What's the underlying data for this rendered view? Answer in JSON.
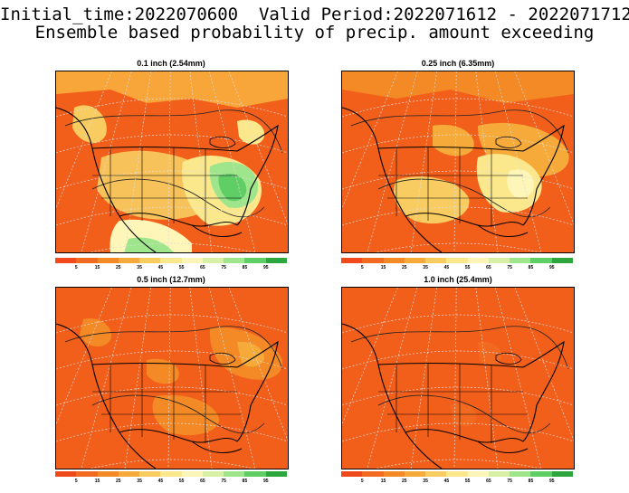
{
  "header": {
    "line1": "Initial_time:2022070600  Valid Period:2022071612 - 2022071712",
    "line2": "Ensemble based probability of precip. amount exceeding"
  },
  "panels": [
    {
      "title": "0.1 inch (2.54mm)",
      "theme": "mixed-wet"
    },
    {
      "title": "0.25 inch (6.35mm)",
      "theme": "mixed-mid"
    },
    {
      "title": "0.5 inch (12.7mm)",
      "theme": "mostly-dry"
    },
    {
      "title": "1.0 inch (25.4mm)",
      "theme": "dry"
    }
  ],
  "colorbar": {
    "labels": [
      "5",
      "15",
      "25",
      "35",
      "45",
      "55",
      "65",
      "75",
      "85",
      "95"
    ],
    "colors": [
      "#f04a1c",
      "#f26a1f",
      "#f38a25",
      "#f5aa3a",
      "#f8cc60",
      "#fbe88c",
      "#fdf6b8",
      "#d8f0a6",
      "#9ee58b",
      "#5fce65",
      "#2ea63e"
    ]
  }
}
